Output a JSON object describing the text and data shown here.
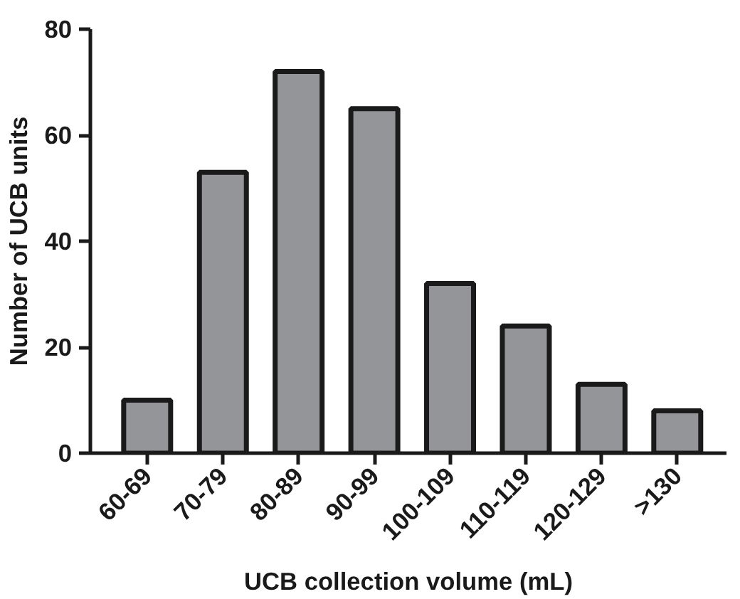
{
  "chart_data": {
    "type": "bar",
    "xlabel": "UCB collection volume (mL)",
    "ylabel": "Number of UCB units",
    "categories": [
      "60-69",
      "70-79",
      "80-89",
      "90-99",
      "100-109",
      "110-119",
      "120-129",
      ">130"
    ],
    "values": [
      10,
      53,
      72,
      65,
      32,
      24,
      13,
      8
    ],
    "color": "#939598",
    "ylim": [
      0,
      80
    ],
    "yticks": [
      0,
      20,
      40,
      60,
      80
    ],
    "grid": false
  }
}
